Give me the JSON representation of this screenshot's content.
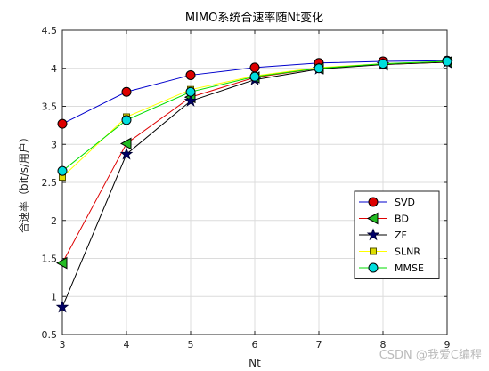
{
  "chart_data": {
    "type": "line",
    "title": "MIMO系统合速率随Nt变化",
    "xlabel": "Nt",
    "ylabel": "合速率（bit/s/用户）",
    "x": [
      3,
      4,
      5,
      6,
      7,
      8,
      9
    ],
    "xlim": [
      3,
      9
    ],
    "ylim": [
      0.5,
      4.5
    ],
    "xticks": [
      "3",
      "4",
      "5",
      "6",
      "7",
      "8",
      "9"
    ],
    "yticks": [
      "0.5",
      "1",
      "1.5",
      "2",
      "2.5",
      "3",
      "3.5",
      "4",
      "4.5"
    ],
    "grid": true,
    "legend_position": "lower-right",
    "series": [
      {
        "name": "SVD",
        "color": "#0000cc",
        "marker": "circle",
        "marker_color": "#dd0000",
        "values": [
          3.27,
          3.69,
          3.91,
          4.01,
          4.07,
          4.09,
          4.1
        ]
      },
      {
        "name": "BD",
        "color": "#dd0000",
        "marker": "triangle-left",
        "marker_color": "#22bb22",
        "values": [
          1.44,
          3.01,
          3.62,
          3.88,
          4.0,
          4.05,
          4.08
        ]
      },
      {
        "name": "ZF",
        "color": "#000000",
        "marker": "star",
        "marker_color": "#000066",
        "values": [
          0.86,
          2.87,
          3.57,
          3.85,
          3.99,
          4.05,
          4.08
        ]
      },
      {
        "name": "SLNR",
        "color": "#ffff00",
        "marker": "square",
        "marker_color": "#dddd00",
        "values": [
          2.57,
          3.36,
          3.72,
          3.9,
          4.01,
          4.06,
          4.09
        ]
      },
      {
        "name": "MMSE",
        "color": "#00dd00",
        "marker": "circle",
        "marker_color": "#00dddd",
        "values": [
          2.65,
          3.32,
          3.69,
          3.89,
          4.0,
          4.06,
          4.09
        ]
      }
    ]
  },
  "watermark": "CSDN @我爱C编程"
}
